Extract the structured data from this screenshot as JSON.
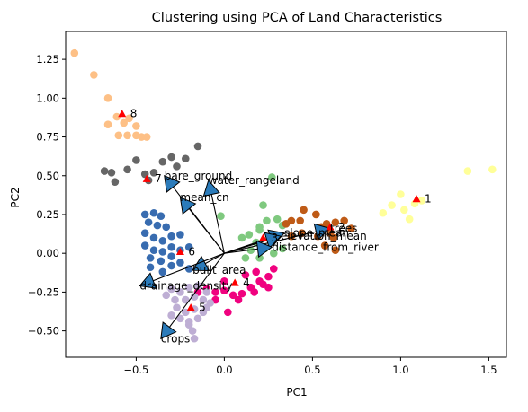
{
  "chart_data": {
    "type": "scatter",
    "title": "Clustering using PCA of Land Characteristics",
    "xlabel": "PC1",
    "ylabel": "PC2",
    "xlim": [
      -0.9,
      1.6
    ],
    "ylim": [
      -0.67,
      1.43
    ],
    "xticks": [
      -0.5,
      0.0,
      0.5,
      1.0,
      1.5
    ],
    "xtick_labels": [
      "−0.5",
      "0.0",
      "0.5",
      "1.0",
      "1.5"
    ],
    "yticks": [
      -0.5,
      -0.25,
      0.0,
      0.25,
      0.5,
      0.75,
      1.0,
      1.25
    ],
    "ytick_labels": [
      "−0.50",
      "−0.25",
      "0.00",
      "0.25",
      "0.50",
      "0.75",
      "1.00",
      "1.25"
    ],
    "grid": false,
    "legend": "none",
    "clusters": [
      {
        "color": "#fdc086",
        "points": [
          [
            -0.85,
            1.29
          ],
          [
            -0.74,
            1.15
          ],
          [
            -0.66,
            1.0
          ],
          [
            -0.61,
            0.88
          ],
          [
            -0.57,
            0.84
          ],
          [
            -0.54,
            0.87
          ],
          [
            -0.5,
            0.82
          ],
          [
            -0.66,
            0.83
          ],
          [
            -0.55,
            0.76
          ],
          [
            -0.5,
            0.76
          ],
          [
            -0.47,
            0.75
          ],
          [
            -0.44,
            0.75
          ],
          [
            -0.6,
            0.76
          ]
        ]
      },
      {
        "color": "#666666",
        "points": [
          [
            -0.68,
            0.53
          ],
          [
            -0.64,
            0.52
          ],
          [
            -0.62,
            0.46
          ],
          [
            -0.55,
            0.54
          ],
          [
            -0.5,
            0.6
          ],
          [
            -0.45,
            0.51
          ],
          [
            -0.4,
            0.52
          ],
          [
            -0.35,
            0.59
          ],
          [
            -0.3,
            0.62
          ],
          [
            -0.27,
            0.56
          ],
          [
            -0.22,
            0.61
          ],
          [
            -0.15,
            0.69
          ],
          [
            -0.43,
            0.47
          ]
        ]
      },
      {
        "color": "#386cb0",
        "points": [
          [
            -0.45,
            0.25
          ],
          [
            -0.4,
            0.26
          ],
          [
            -0.36,
            0.24
          ],
          [
            -0.43,
            0.2
          ],
          [
            -0.38,
            0.18
          ],
          [
            -0.33,
            0.17
          ],
          [
            -0.45,
            0.13
          ],
          [
            -0.4,
            0.1
          ],
          [
            -0.35,
            0.08
          ],
          [
            -0.3,
            0.11
          ],
          [
            -0.25,
            0.12
          ],
          [
            -0.45,
            0.05
          ],
          [
            -0.4,
            0.02
          ],
          [
            -0.35,
            0.01
          ],
          [
            -0.3,
            0.04
          ],
          [
            -0.42,
            -0.03
          ],
          [
            -0.36,
            -0.05
          ],
          [
            -0.3,
            -0.02
          ],
          [
            -0.25,
            0.02
          ],
          [
            -0.2,
            0.04
          ],
          [
            -0.42,
            -0.09
          ],
          [
            -0.35,
            -0.12
          ],
          [
            -0.3,
            -0.08
          ],
          [
            -0.25,
            -0.06
          ],
          [
            -0.2,
            -0.1
          ]
        ]
      },
      {
        "color": "#7fc97f",
        "points": [
          [
            0.27,
            0.49
          ],
          [
            0.22,
            0.31
          ],
          [
            -0.02,
            0.24
          ],
          [
            0.3,
            0.22
          ],
          [
            0.24,
            0.21
          ],
          [
            0.2,
            0.17
          ],
          [
            0.33,
            0.18
          ],
          [
            0.2,
            0.15
          ],
          [
            0.14,
            0.12
          ],
          [
            0.1,
            0.1
          ],
          [
            0.18,
            0.07
          ],
          [
            0.23,
            0.03
          ],
          [
            0.28,
            0.0
          ],
          [
            0.33,
            0.03
          ],
          [
            0.15,
            0.02
          ],
          [
            0.2,
            -0.03
          ],
          [
            0.12,
            -0.03
          ]
        ]
      },
      {
        "color": "#bf5b17",
        "points": [
          [
            0.45,
            0.28
          ],
          [
            0.52,
            0.25
          ],
          [
            0.43,
            0.21
          ],
          [
            0.38,
            0.21
          ],
          [
            0.35,
            0.19
          ],
          [
            0.55,
            0.17
          ],
          [
            0.58,
            0.19
          ],
          [
            0.63,
            0.2
          ],
          [
            0.68,
            0.21
          ],
          [
            0.72,
            0.16
          ],
          [
            0.6,
            0.13
          ],
          [
            0.53,
            0.11
          ],
          [
            0.44,
            0.13
          ],
          [
            0.38,
            0.11
          ],
          [
            0.62,
            0.1
          ],
          [
            0.57,
            0.05
          ],
          [
            0.63,
            0.02
          ]
        ]
      },
      {
        "color": "#ffff99",
        "points": [
          [
            1.0,
            0.38
          ],
          [
            0.95,
            0.31
          ],
          [
            1.02,
            0.28
          ],
          [
            1.08,
            0.32
          ],
          [
            0.9,
            0.26
          ],
          [
            1.12,
            0.34
          ],
          [
            1.38,
            0.53
          ],
          [
            1.52,
            0.54
          ],
          [
            1.05,
            0.22
          ]
        ]
      },
      {
        "color": "#f0027f",
        "points": [
          [
            -0.1,
            -0.23
          ],
          [
            -0.05,
            -0.25
          ],
          [
            0.0,
            -0.24
          ],
          [
            0.05,
            -0.27
          ],
          [
            0.1,
            -0.26
          ],
          [
            0.15,
            -0.22
          ],
          [
            0.2,
            -0.18
          ],
          [
            0.25,
            -0.15
          ],
          [
            0.28,
            -0.1
          ],
          [
            0.22,
            -0.2
          ],
          [
            0.17,
            -0.25
          ],
          [
            0.08,
            -0.3
          ],
          [
            -0.05,
            -0.3
          ],
          [
            -0.15,
            -0.25
          ],
          [
            0.0,
            -0.18
          ],
          [
            0.12,
            -0.14
          ],
          [
            0.18,
            -0.12
          ],
          [
            0.02,
            -0.38
          ],
          [
            0.25,
            -0.22
          ]
        ]
      },
      {
        "color": "#beaed4",
        "points": [
          [
            -0.3,
            -0.23
          ],
          [
            -0.25,
            -0.25
          ],
          [
            -0.2,
            -0.22
          ],
          [
            -0.15,
            -0.21
          ],
          [
            -0.1,
            -0.25
          ],
          [
            -0.28,
            -0.3
          ],
          [
            -0.22,
            -0.3
          ],
          [
            -0.17,
            -0.28
          ],
          [
            -0.12,
            -0.3
          ],
          [
            -0.08,
            -0.32
          ],
          [
            -0.27,
            -0.35
          ],
          [
            -0.22,
            -0.38
          ],
          [
            -0.17,
            -0.36
          ],
          [
            -0.12,
            -0.38
          ],
          [
            -0.25,
            -0.42
          ],
          [
            -0.2,
            -0.44
          ],
          [
            -0.15,
            -0.42
          ],
          [
            -0.3,
            -0.4
          ],
          [
            -0.1,
            -0.35
          ],
          [
            -0.33,
            -0.27
          ],
          [
            -0.18,
            -0.5
          ],
          [
            -0.17,
            -0.55
          ],
          [
            -0.2,
            -0.46
          ]
        ]
      }
    ],
    "centroids": [
      {
        "label": "1",
        "x": 1.09,
        "y": 0.35
      },
      {
        "label": "2",
        "x": 0.6,
        "y": 0.17
      },
      {
        "label": "3",
        "x": 0.22,
        "y": 0.1
      },
      {
        "label": "4",
        "x": 0.06,
        "y": -0.19
      },
      {
        "label": "5",
        "x": -0.19,
        "y": -0.35
      },
      {
        "label": "6",
        "x": -0.25,
        "y": 0.01
      },
      {
        "label": "7",
        "x": -0.44,
        "y": 0.48
      },
      {
        "label": "8",
        "x": -0.58,
        "y": 0.9
      }
    ],
    "loadings": [
      {
        "label": "bare_ground",
        "x": -0.34,
        "y": 0.5
      },
      {
        "label": "water_rangeland",
        "x": -0.09,
        "y": 0.47
      },
      {
        "label": "mean_cn",
        "x": -0.25,
        "y": 0.36
      },
      {
        "label": "slope_mean",
        "x": 0.34,
        "y": 0.13
      },
      {
        "label": "trees",
        "x": 0.6,
        "y": 0.16
      },
      {
        "label": "elevation_mean",
        "x": 0.32,
        "y": 0.11
      },
      {
        "label": "distance_from_river",
        "x": 0.27,
        "y": 0.04
      },
      {
        "label": "built_area",
        "x": -0.18,
        "y": -0.11
      },
      {
        "label": "drainage_density",
        "x": -0.48,
        "y": -0.21
      },
      {
        "label": "crops",
        "x": -0.36,
        "y": -0.55
      }
    ]
  }
}
